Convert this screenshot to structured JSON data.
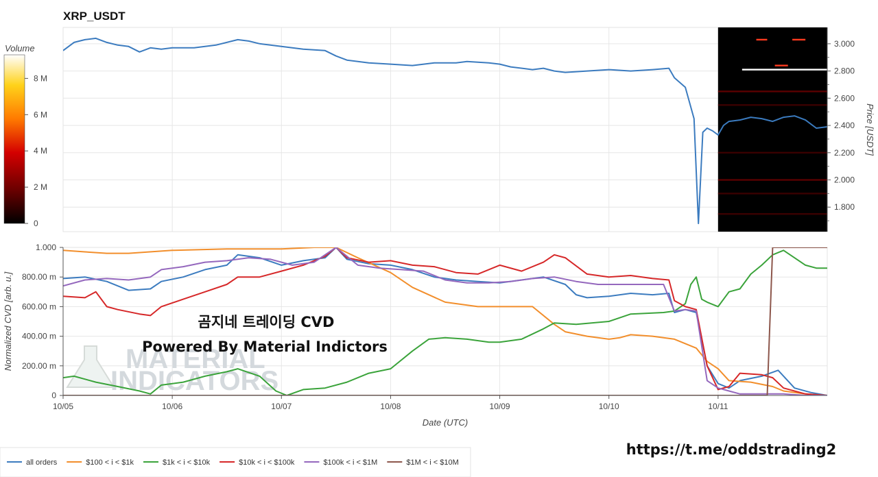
{
  "chart_data": [
    {
      "type": "line",
      "title": "XRP_USDT",
      "ylabel": "Price [USDT]",
      "yticks": [
        1.8,
        2.0,
        2.2,
        2.4,
        2.6,
        2.8,
        3.0
      ],
      "ytick_labels": [
        "1.800",
        "2.000",
        "2.200",
        "2.400",
        "2.600",
        "2.800",
        "3.000"
      ],
      "ylim": [
        1.62,
        3.12
      ],
      "xlim": [
        5.0,
        12.0
      ],
      "series": [
        {
          "color": "#3b7bbf",
          "x": [
            5.0,
            5.1,
            5.2,
            5.3,
            5.4,
            5.5,
            5.6,
            5.7,
            5.8,
            5.9,
            6.0,
            6.2,
            6.4,
            6.6,
            6.7,
            6.8,
            7.0,
            7.2,
            7.4,
            7.5,
            7.6,
            7.8,
            8.0,
            8.2,
            8.4,
            8.6,
            8.7,
            8.9,
            9.0,
            9.1,
            9.3,
            9.4,
            9.5,
            9.6,
            9.8,
            10.0,
            10.2,
            10.4,
            10.55,
            10.6,
            10.7,
            10.78,
            10.82,
            10.86,
            10.9,
            10.95,
            11.0,
            11.05,
            11.1,
            11.2,
            11.3,
            11.4,
            11.5,
            11.6,
            11.7,
            11.8,
            11.9,
            12.0
          ],
          "y": [
            2.95,
            3.01,
            3.03,
            3.04,
            3.01,
            2.99,
            2.98,
            2.94,
            2.97,
            2.96,
            2.97,
            2.97,
            2.99,
            3.03,
            3.02,
            3.0,
            2.98,
            2.96,
            2.95,
            2.91,
            2.88,
            2.86,
            2.85,
            2.84,
            2.86,
            2.86,
            2.87,
            2.86,
            2.85,
            2.83,
            2.81,
            2.82,
            2.8,
            2.79,
            2.8,
            2.81,
            2.8,
            2.81,
            2.82,
            2.75,
            2.68,
            2.45,
            1.68,
            2.35,
            2.38,
            2.36,
            2.33,
            2.4,
            2.43,
            2.44,
            2.46,
            2.45,
            2.43,
            2.46,
            2.47,
            2.44,
            2.38,
            2.39
          ]
        }
      ],
      "heatmap": {
        "x_start": 11.0,
        "x_end": 12.0,
        "background": "#000000",
        "orderbook_levels": [
          {
            "price": 3.03,
            "from": 11.35,
            "to": 11.45,
            "color": "#ff3b1f"
          },
          {
            "price": 3.03,
            "from": 11.68,
            "to": 11.8,
            "color": "#ff3b1f"
          },
          {
            "price": 2.81,
            "from": 11.22,
            "to": 12.0,
            "color": "#ffffff"
          },
          {
            "price": 2.84,
            "from": 11.52,
            "to": 11.64,
            "color": "#ff3b1f"
          },
          {
            "price": 2.65,
            "from": 11.0,
            "to": 12.0,
            "color": "#5a0000"
          },
          {
            "price": 2.55,
            "from": 11.0,
            "to": 12.0,
            "color": "#3a0000"
          },
          {
            "price": 2.2,
            "from": 11.0,
            "to": 12.0,
            "color": "#3a0000"
          },
          {
            "price": 2.0,
            "from": 11.0,
            "to": 12.0,
            "color": "#5a0000"
          },
          {
            "price": 1.9,
            "from": 11.0,
            "to": 12.0,
            "color": "#3a0000"
          },
          {
            "price": 1.75,
            "from": 11.0,
            "to": 12.0,
            "color": "#3a0000"
          }
        ]
      }
    },
    {
      "type": "line",
      "xlabel": "Date (UTC)",
      "ylabel": "Normalized CVD [arb. u.]",
      "xticks": [
        5,
        6,
        7,
        8,
        9,
        10,
        11
      ],
      "xtick_labels": [
        "10/05",
        "10/06",
        "10/07",
        "10/08",
        "10/09",
        "10/10",
        "10/11"
      ],
      "yticks": [
        0,
        0.2,
        0.4,
        0.6,
        0.8,
        1.0
      ],
      "ytick_labels": [
        "0",
        "200.00 m",
        "400.00 m",
        "600.00 m",
        "800.00 m",
        "1.000"
      ],
      "ylim": [
        0,
        1.0
      ],
      "series": [
        {
          "name": "all orders",
          "color": "#3b7bbf",
          "x": [
            5.0,
            5.2,
            5.4,
            5.6,
            5.8,
            5.9,
            6.1,
            6.3,
            6.5,
            6.6,
            6.8,
            7.0,
            7.2,
            7.4,
            7.5,
            7.6,
            7.8,
            8.0,
            8.2,
            8.4,
            8.6,
            8.8,
            9.0,
            9.2,
            9.4,
            9.6,
            9.7,
            9.8,
            10.0,
            10.2,
            10.4,
            10.55,
            10.6,
            10.7,
            10.8,
            10.9,
            11.0,
            11.1,
            11.2,
            11.4,
            11.55,
            11.7,
            11.85,
            12.0
          ],
          "y": [
            0.79,
            0.8,
            0.77,
            0.71,
            0.72,
            0.77,
            0.8,
            0.85,
            0.88,
            0.95,
            0.93,
            0.88,
            0.91,
            0.93,
            1.0,
            0.92,
            0.89,
            0.88,
            0.85,
            0.8,
            0.78,
            0.77,
            0.76,
            0.78,
            0.8,
            0.75,
            0.68,
            0.66,
            0.67,
            0.69,
            0.68,
            0.69,
            0.56,
            0.58,
            0.56,
            0.2,
            0.08,
            0.05,
            0.1,
            0.13,
            0.17,
            0.05,
            0.02,
            0.0
          ]
        },
        {
          "name": "$100 < i < $1k",
          "color": "#f28e2b",
          "x": [
            5.0,
            5.2,
            5.4,
            5.6,
            6.0,
            6.5,
            7.0,
            7.3,
            7.5,
            7.7,
            8.0,
            8.2,
            8.5,
            8.8,
            9.0,
            9.3,
            9.5,
            9.6,
            9.8,
            10.0,
            10.1,
            10.2,
            10.4,
            10.6,
            10.8,
            10.9,
            11.0,
            11.1,
            11.3,
            11.5,
            11.6,
            11.8,
            12.0
          ],
          "y": [
            0.98,
            0.97,
            0.96,
            0.96,
            0.98,
            0.99,
            0.99,
            1.0,
            1.0,
            0.93,
            0.83,
            0.73,
            0.63,
            0.6,
            0.6,
            0.6,
            0.48,
            0.43,
            0.4,
            0.38,
            0.39,
            0.41,
            0.4,
            0.38,
            0.32,
            0.23,
            0.18,
            0.1,
            0.09,
            0.06,
            0.03,
            0.01,
            0.0
          ]
        },
        {
          "name": "$1k < i < $10k",
          "color": "#3aa33a",
          "x": [
            5.0,
            5.1,
            5.3,
            5.5,
            5.7,
            5.8,
            5.9,
            6.1,
            6.3,
            6.5,
            6.6,
            6.8,
            6.95,
            7.05,
            7.2,
            7.4,
            7.6,
            7.8,
            8.0,
            8.2,
            8.35,
            8.5,
            8.7,
            8.9,
            9.0,
            9.2,
            9.4,
            9.5,
            9.7,
            10.0,
            10.2,
            10.5,
            10.6,
            10.7,
            10.75,
            10.8,
            10.85,
            10.9,
            11.0,
            11.1,
            11.2,
            11.3,
            11.4,
            11.5,
            11.6,
            11.8,
            11.9,
            12.0
          ],
          "y": [
            0.12,
            0.13,
            0.09,
            0.06,
            0.03,
            0.01,
            0.07,
            0.09,
            0.13,
            0.16,
            0.18,
            0.13,
            0.03,
            0.0,
            0.04,
            0.05,
            0.09,
            0.15,
            0.18,
            0.3,
            0.38,
            0.39,
            0.38,
            0.36,
            0.36,
            0.38,
            0.45,
            0.49,
            0.48,
            0.5,
            0.55,
            0.56,
            0.57,
            0.62,
            0.75,
            0.8,
            0.65,
            0.63,
            0.6,
            0.7,
            0.72,
            0.82,
            0.88,
            0.95,
            0.98,
            0.88,
            0.86,
            0.86
          ]
        },
        {
          "name": "$10k < i < $100k",
          "color": "#d62728",
          "x": [
            5.0,
            5.2,
            5.3,
            5.4,
            5.5,
            5.7,
            5.8,
            5.9,
            6.1,
            6.3,
            6.5,
            6.6,
            6.8,
            7.0,
            7.2,
            7.4,
            7.5,
            7.6,
            7.8,
            8.0,
            8.2,
            8.4,
            8.6,
            8.8,
            9.0,
            9.2,
            9.4,
            9.5,
            9.6,
            9.8,
            10.0,
            10.2,
            10.4,
            10.55,
            10.6,
            10.7,
            10.8,
            10.9,
            11.0,
            11.1,
            11.2,
            11.4,
            11.5,
            11.6,
            11.8,
            12.0
          ],
          "y": [
            0.67,
            0.66,
            0.7,
            0.6,
            0.58,
            0.55,
            0.54,
            0.6,
            0.65,
            0.7,
            0.75,
            0.8,
            0.8,
            0.84,
            0.88,
            0.94,
            1.0,
            0.93,
            0.9,
            0.91,
            0.88,
            0.87,
            0.83,
            0.82,
            0.88,
            0.84,
            0.9,
            0.95,
            0.93,
            0.82,
            0.8,
            0.81,
            0.79,
            0.78,
            0.64,
            0.6,
            0.58,
            0.2,
            0.04,
            0.06,
            0.15,
            0.14,
            0.12,
            0.05,
            0.01,
            0.0
          ]
        },
        {
          "name": "$100k < i < $1M",
          "color": "#9467bd",
          "x": [
            5.0,
            5.2,
            5.4,
            5.6,
            5.8,
            5.9,
            6.1,
            6.3,
            6.5,
            6.7,
            6.9,
            7.1,
            7.3,
            7.5,
            7.7,
            7.9,
            8.1,
            8.3,
            8.5,
            8.7,
            8.9,
            9.1,
            9.3,
            9.5,
            9.7,
            9.9,
            10.1,
            10.3,
            10.5,
            10.6,
            10.7,
            10.8,
            10.9,
            11.0,
            11.1,
            11.2,
            11.4,
            11.6,
            11.8,
            12.0
          ],
          "y": [
            0.74,
            0.78,
            0.79,
            0.78,
            0.8,
            0.85,
            0.87,
            0.9,
            0.91,
            0.93,
            0.92,
            0.88,
            0.9,
            1.0,
            0.88,
            0.86,
            0.85,
            0.84,
            0.78,
            0.76,
            0.76,
            0.77,
            0.79,
            0.8,
            0.77,
            0.75,
            0.75,
            0.75,
            0.75,
            0.57,
            0.58,
            0.57,
            0.1,
            0.05,
            0.03,
            0.01,
            0.01,
            0.01,
            0.0,
            0.0
          ]
        },
        {
          "name": "$1M < i < $10M",
          "color": "#8c564b",
          "x": [
            5.0,
            10.5,
            11.0,
            11.45,
            11.5,
            12.0
          ],
          "y": [
            0.0,
            0.0,
            0.0,
            0.0,
            1.0,
            1.0
          ]
        }
      ]
    },
    {
      "type": "heatmap",
      "title": "Volume",
      "ticks": [
        0,
        2000000,
        4000000,
        6000000,
        8000000
      ],
      "tick_labels": [
        "0",
        "2 M",
        "4 M",
        "6 M",
        "8 M"
      ],
      "range": [
        0,
        9300000
      ],
      "colorscale": [
        "#000000",
        "#6b0000",
        "#d40000",
        "#ff7a00",
        "#ffd21a",
        "#ffffff"
      ]
    }
  ],
  "annotations": {
    "caption_line1": "곰지네 트레이딩 CVD",
    "caption_line2": "Powered By Material Indictors",
    "watermark_line1": "MATERIAL",
    "watermark_line2": "INDICATORS",
    "link": "https://t.me/oddstrading2"
  }
}
